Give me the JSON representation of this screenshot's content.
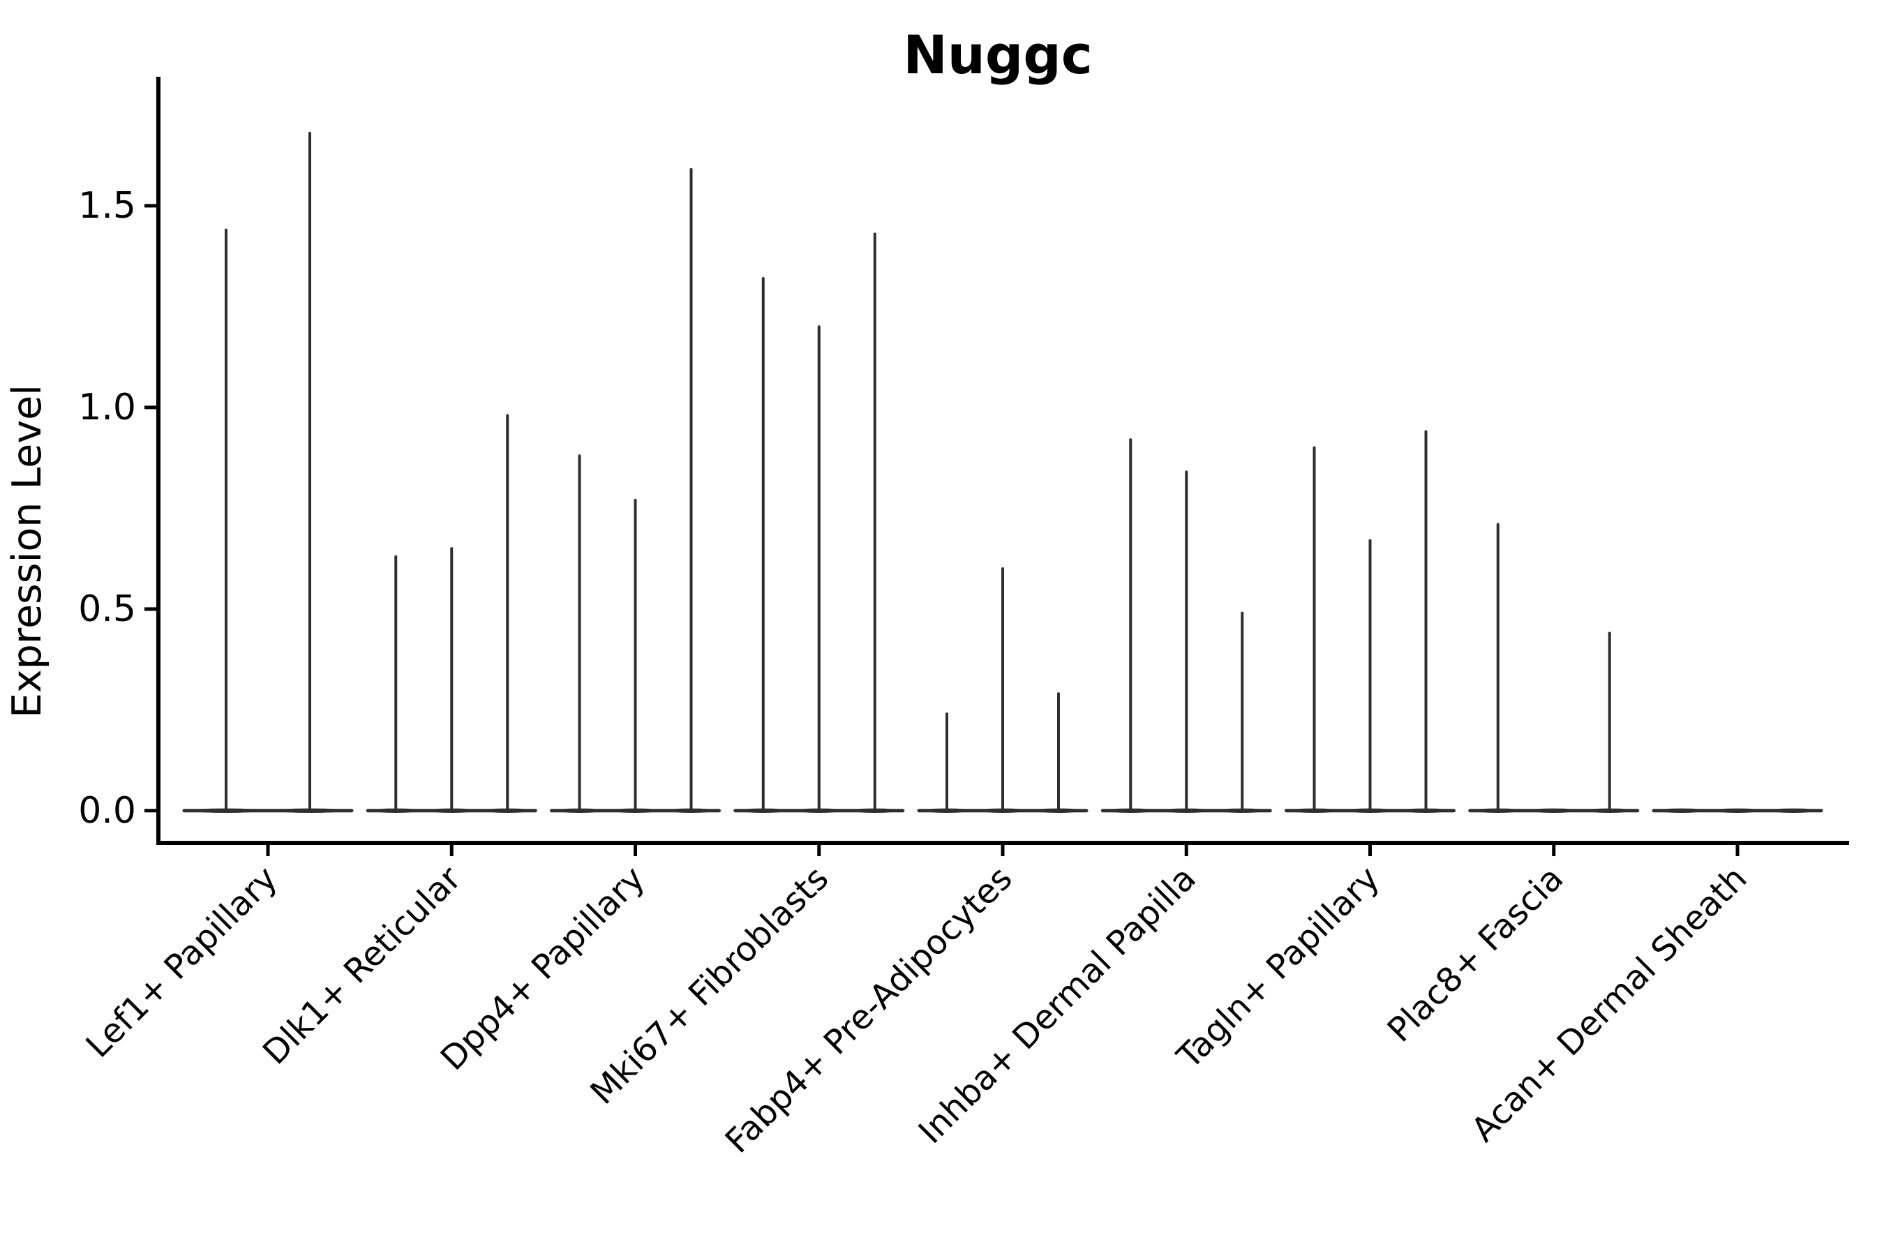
{
  "figure": {
    "kind": "violin-plot-figure",
    "background_color": "#ffffff"
  },
  "chart_data": {
    "type": "violin",
    "title": "Nuggc",
    "xlabel": "",
    "ylabel": "Expression Level",
    "categories": [
      "Lef1+ Papillary",
      "Dlk1+ Reticular",
      "Dpp4+ Papillary",
      "Mki67+ Fibroblasts",
      "Fabp4+ Pre-Adipocytes",
      "Inhba+ Dermal Papilla",
      "Tagln+ Papillary",
      "Plac8+ Fascia",
      "Acan+ Dermal Sheath"
    ],
    "violins_per_category_max_expression": [
      [
        1.44,
        1.68
      ],
      [
        0.63,
        0.65,
        0.98
      ],
      [
        0.88,
        0.77,
        1.59
      ],
      [
        1.32,
        1.2,
        1.43
      ],
      [
        0.24,
        0.6,
        0.29
      ],
      [
        0.92,
        0.84,
        0.49
      ],
      [
        0.9,
        0.67,
        0.94
      ],
      [
        0.71,
        0.0,
        0.44
      ],
      [
        0.0,
        0.0,
        0.0
      ]
    ],
    "violin_shape_note": "each violin is a needle: wide flat base at 0 expression with a thin spike up to its max value",
    "baseline_value": 0.0,
    "yticks": [
      0.0,
      0.5,
      1.0,
      1.5
    ],
    "ytick_labels": [
      "0.0",
      "0.5",
      "1.0",
      "1.5"
    ],
    "ylim": [
      -0.08,
      1.82
    ],
    "x_tick_label_rotation_deg": 45,
    "grid": false,
    "legend_position": "none",
    "colors": {
      "violin": "#2e2e2e",
      "axis": "#000000",
      "text": "#000000",
      "background": "#ffffff"
    }
  }
}
